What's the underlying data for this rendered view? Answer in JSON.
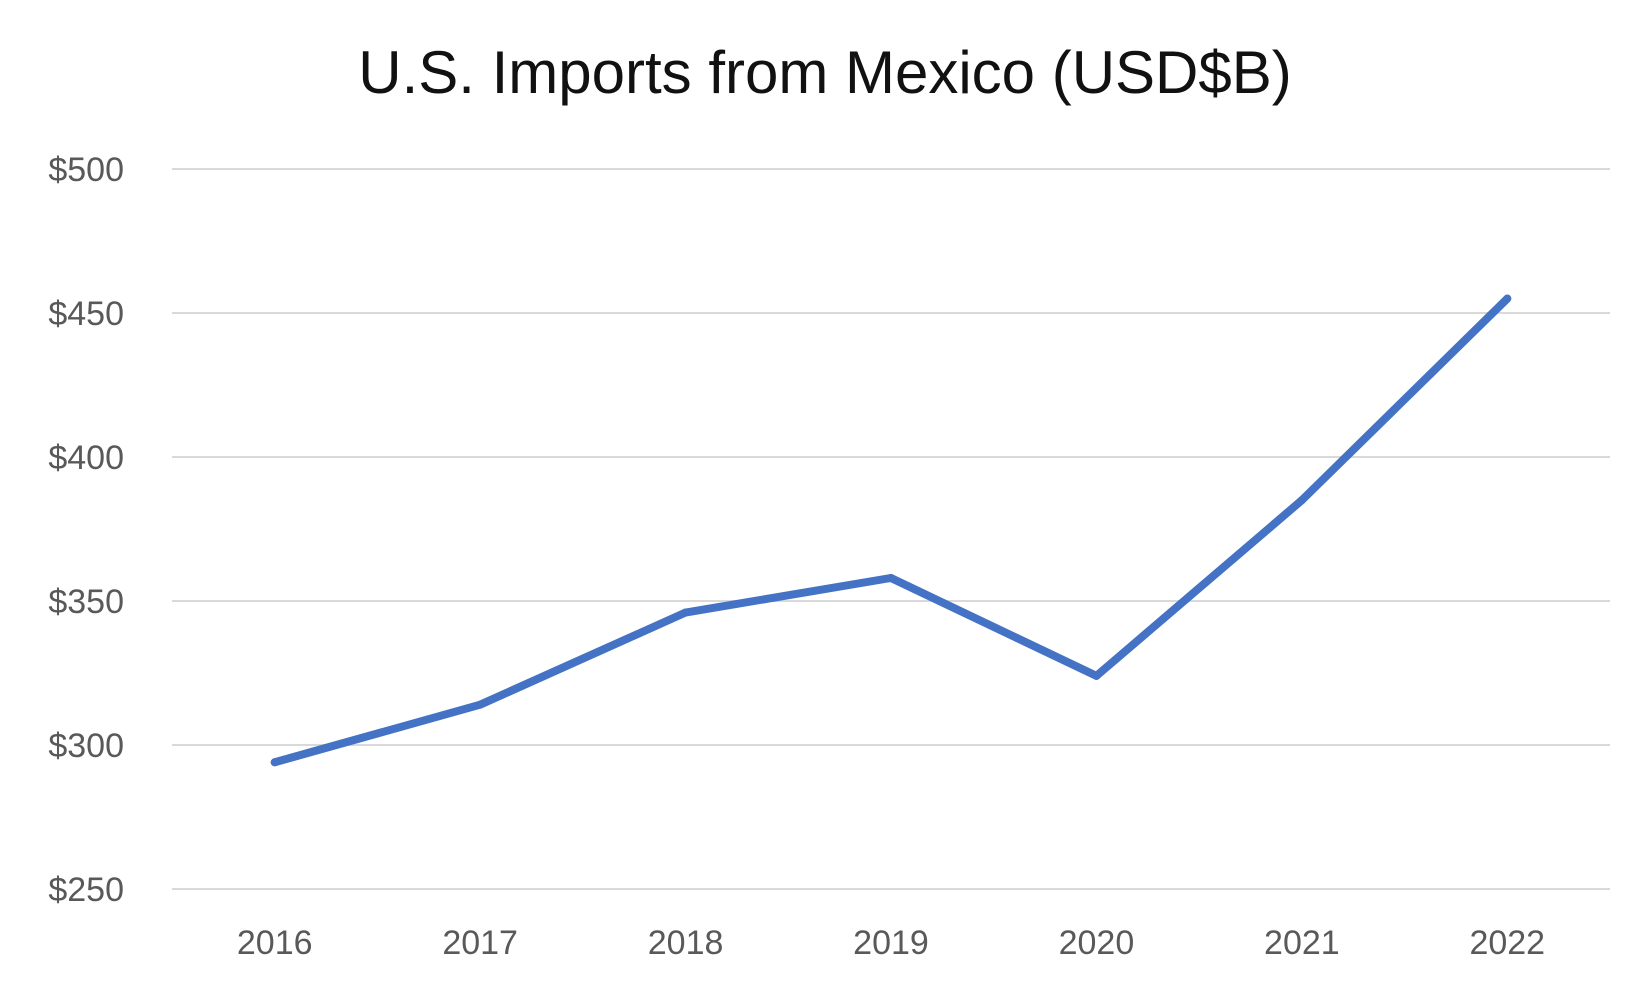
{
  "chart_data": {
    "type": "line",
    "title": "U.S. Imports from Mexico (USD$B)",
    "categories": [
      "2016",
      "2017",
      "2018",
      "2019",
      "2020",
      "2021",
      "2022"
    ],
    "series": [
      {
        "values": [
          294,
          314,
          346,
          358,
          324,
          385,
          455
        ],
        "color": "#4472c4"
      }
    ],
    "ylim": [
      250,
      500
    ],
    "yticks": [
      250,
      300,
      350,
      400,
      450,
      500
    ],
    "ytick_labels": [
      "$250",
      "$300",
      "$350",
      "$400",
      "$450",
      "$500"
    ],
    "grid": true,
    "legend": "none",
    "gridline_color": "#d9d9d9"
  }
}
